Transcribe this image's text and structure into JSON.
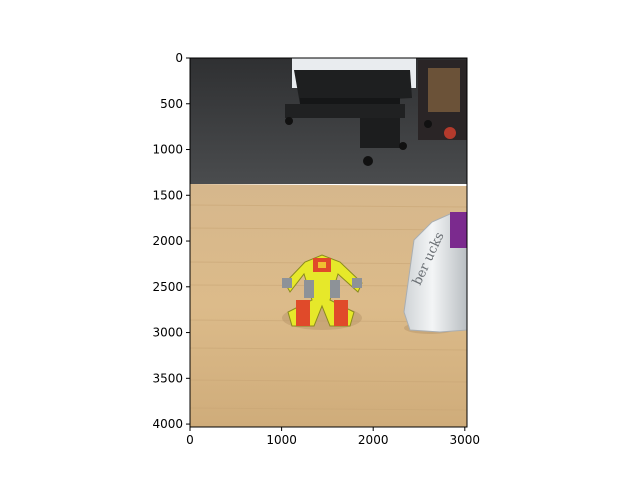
{
  "chart_data": {
    "type": "image",
    "title": "",
    "xlabel": "",
    "ylabel": "",
    "xlim": [
      0,
      3024
    ],
    "ylim": [
      4032,
      0
    ],
    "x_ticks": [
      {
        "value": 0,
        "label": "0"
      },
      {
        "value": 1000,
        "label": "1000"
      },
      {
        "value": 2000,
        "label": "2000"
      },
      {
        "value": 3000,
        "label": "3000"
      }
    ],
    "y_ticks": [
      {
        "value": 0,
        "label": "0"
      },
      {
        "value": 500,
        "label": "500"
      },
      {
        "value": 1000,
        "label": "1000"
      },
      {
        "value": 1500,
        "label": "1500"
      },
      {
        "value": 2000,
        "label": "2000"
      },
      {
        "value": 2500,
        "label": "2500"
      },
      {
        "value": 3000,
        "label": "3000"
      },
      {
        "value": 3500,
        "label": "3500"
      },
      {
        "value": 4000,
        "label": "4000"
      }
    ],
    "grid": false,
    "legend": "none"
  },
  "photo": {
    "bottle_label_text": "ber ucks",
    "colors": {
      "floor": "#3a3b3c",
      "table_wood": "#d9b888",
      "robot_yellow": "#e6e82a",
      "robot_red": "#e04a2a",
      "robot_gray": "#8d9298",
      "bottle_white": "#eef0f2",
      "bottle_cap": "#7b2a8e"
    }
  }
}
